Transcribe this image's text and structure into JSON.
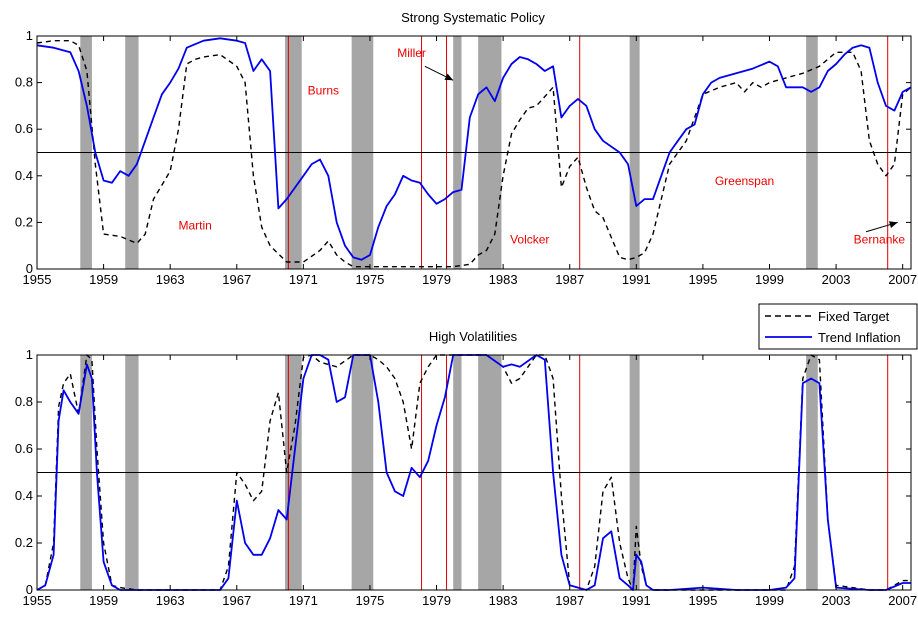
{
  "colors": {
    "trend": "#0000ee",
    "fixed": "#000000",
    "recession": "#a6a6a6",
    "chair_line": "#dd0000",
    "chair_label": "#ee0000"
  },
  "legend": {
    "entries": [
      {
        "name": "Fixed Target",
        "style": "dashed"
      },
      {
        "name": "Trend Inflation",
        "style": "solid"
      }
    ],
    "placement": "between-panels-right"
  },
  "chart_data": [
    {
      "type": "line",
      "title": "Strong Systematic Policy",
      "xlim": [
        1955,
        2007.5
      ],
      "ylim": [
        0,
        1
      ],
      "x_ticks": [
        1955,
        1959,
        1963,
        1967,
        1971,
        1975,
        1979,
        1983,
        1987,
        1991,
        1995,
        1999,
        2003,
        2007
      ],
      "y_ticks": [
        0,
        0.2,
        0.4,
        0.6,
        0.8,
        1
      ],
      "reference_line": 0.5,
      "recessions": [
        [
          1957.6,
          1958.3
        ],
        [
          1960.3,
          1961.1
        ],
        [
          1969.9,
          1970.9
        ],
        [
          1973.9,
          1975.2
        ],
        [
          1980.0,
          1980.5
        ],
        [
          1981.5,
          1982.9
        ],
        [
          1990.6,
          1991.2
        ],
        [
          2001.2,
          2001.9
        ]
      ],
      "chair_changes": [
        1970.1,
        1978.1,
        1979.6,
        1987.6,
        2006.1
      ],
      "annotations": [
        {
          "text": "Martin",
          "x": 1964.5,
          "y": 0.17
        },
        {
          "text": "Burns",
          "x": 1972.2,
          "y": 0.75
        },
        {
          "text": "Miller",
          "x": 1977.5,
          "y": 0.91
        },
        {
          "text": "Volcker",
          "x": 1984.6,
          "y": 0.11
        },
        {
          "text": "Greenspan",
          "x": 1997.5,
          "y": 0.36
        },
        {
          "text": "Bernanke",
          "x": 2005.6,
          "y": 0.11
        }
      ],
      "arrows": [
        {
          "from": [
            1978.3,
            0.87
          ],
          "to": [
            1980.0,
            0.81
          ]
        },
        {
          "from": [
            2004.8,
            0.16
          ],
          "to": [
            2006.7,
            0.2
          ]
        }
      ],
      "series": [
        {
          "name": "Fixed Target",
          "style": "dashed",
          "x": [
            1955,
            1956,
            1957,
            1957.5,
            1958,
            1958.5,
            1959,
            1960,
            1961,
            1961.5,
            1962,
            1962.5,
            1963,
            1963.5,
            1964,
            1964.5,
            1965,
            1966,
            1967,
            1967.5,
            1968,
            1968.5,
            1969,
            1970,
            1971,
            1972,
            1972.5,
            1973,
            1973.5,
            1974,
            1975,
            1976,
            1977,
            1978,
            1979,
            1980,
            1981,
            1981.5,
            1982,
            1982.5,
            1983,
            1983.5,
            1984,
            1984.5,
            1985,
            1985.5,
            1986,
            1986.5,
            1987,
            1987.5,
            1988,
            1988.5,
            1989,
            1990,
            1990.5,
            1991,
            1991.5,
            1992,
            1992.5,
            1993,
            1994,
            1995,
            1996,
            1997,
            1997.5,
            1998,
            1998.5,
            1999,
            2000,
            2001,
            2002,
            2003,
            2004,
            2004.5,
            2005,
            2005.5,
            2006,
            2006.5,
            2007,
            2007.5
          ],
          "y": [
            0.97,
            0.98,
            0.98,
            0.96,
            0.85,
            0.45,
            0.15,
            0.14,
            0.11,
            0.15,
            0.3,
            0.36,
            0.42,
            0.6,
            0.88,
            0.9,
            0.91,
            0.92,
            0.87,
            0.8,
            0.4,
            0.18,
            0.1,
            0.03,
            0.03,
            0.08,
            0.12,
            0.06,
            0.03,
            0.01,
            0.01,
            0.01,
            0.01,
            0.01,
            0.01,
            0.01,
            0.02,
            0.06,
            0.08,
            0.15,
            0.4,
            0.58,
            0.64,
            0.69,
            0.7,
            0.74,
            0.78,
            0.35,
            0.44,
            0.48,
            0.35,
            0.25,
            0.22,
            0.05,
            0.04,
            0.05,
            0.07,
            0.15,
            0.3,
            0.45,
            0.55,
            0.75,
            0.78,
            0.8,
            0.76,
            0.8,
            0.78,
            0.8,
            0.82,
            0.84,
            0.87,
            0.93,
            0.93,
            0.85,
            0.55,
            0.45,
            0.4,
            0.45,
            0.75,
            0.78
          ]
        },
        {
          "name": "Trend Inflation",
          "style": "solid",
          "x": [
            1955,
            1956,
            1957,
            1957.5,
            1958,
            1958.5,
            1959,
            1959.5,
            1960,
            1960.5,
            1961,
            1961.5,
            1962,
            1962.5,
            1963,
            1963.5,
            1964,
            1965,
            1966,
            1967,
            1967.5,
            1968,
            1968.5,
            1969,
            1969.5,
            1970,
            1971,
            1971.5,
            1972,
            1972.5,
            1973,
            1973.5,
            1974,
            1974.5,
            1975,
            1975.5,
            1976,
            1976.5,
            1977,
            1977.5,
            1978,
            1978.5,
            1979,
            1979.5,
            1980,
            1980.5,
            1981,
            1981.5,
            1982,
            1982.5,
            1983,
            1983.5,
            1984,
            1984.5,
            1985,
            1985.5,
            1986,
            1986.5,
            1987,
            1987.5,
            1988,
            1988.5,
            1989,
            1990,
            1990.5,
            1991,
            1991.5,
            1992,
            1992.5,
            1993,
            1993.5,
            1994,
            1994.5,
            1995,
            1995.5,
            1996,
            1997,
            1998,
            1999,
            1999.5,
            2000,
            2000.5,
            2001,
            2001.5,
            2002,
            2002.5,
            2003,
            2003.5,
            2004,
            2004.5,
            2005,
            2005.5,
            2006,
            2006.5,
            2007,
            2007.5
          ],
          "y": [
            0.96,
            0.95,
            0.93,
            0.85,
            0.7,
            0.5,
            0.38,
            0.37,
            0.42,
            0.4,
            0.45,
            0.55,
            0.65,
            0.75,
            0.8,
            0.86,
            0.95,
            0.98,
            0.99,
            0.98,
            0.97,
            0.85,
            0.9,
            0.85,
            0.26,
            0.3,
            0.4,
            0.45,
            0.47,
            0.4,
            0.2,
            0.1,
            0.05,
            0.04,
            0.06,
            0.18,
            0.27,
            0.32,
            0.4,
            0.38,
            0.37,
            0.32,
            0.28,
            0.3,
            0.33,
            0.34,
            0.65,
            0.75,
            0.78,
            0.72,
            0.82,
            0.88,
            0.91,
            0.9,
            0.88,
            0.85,
            0.87,
            0.65,
            0.7,
            0.73,
            0.7,
            0.6,
            0.55,
            0.5,
            0.45,
            0.27,
            0.3,
            0.3,
            0.4,
            0.5,
            0.55,
            0.6,
            0.62,
            0.75,
            0.8,
            0.82,
            0.84,
            0.86,
            0.89,
            0.87,
            0.78,
            0.78,
            0.78,
            0.76,
            0.78,
            0.85,
            0.88,
            0.92,
            0.95,
            0.96,
            0.95,
            0.8,
            0.7,
            0.68,
            0.76,
            0.78
          ]
        }
      ]
    },
    {
      "type": "line",
      "title": "High Volatilities",
      "xlim": [
        1955,
        2007.5
      ],
      "ylim": [
        0,
        1
      ],
      "x_ticks": [
        1955,
        1959,
        1963,
        1967,
        1971,
        1975,
        1979,
        1983,
        1987,
        1991,
        1995,
        1999,
        2003,
        2007
      ],
      "y_ticks": [
        0,
        0.2,
        0.4,
        0.6,
        0.8,
        1
      ],
      "reference_line": 0.5,
      "recessions": [
        [
          1957.6,
          1958.3
        ],
        [
          1960.3,
          1961.1
        ],
        [
          1969.9,
          1970.9
        ],
        [
          1973.9,
          1975.2
        ],
        [
          1980.0,
          1980.5
        ],
        [
          1981.5,
          1982.9
        ],
        [
          1990.6,
          1991.2
        ],
        [
          2001.2,
          2001.9
        ]
      ],
      "chair_changes": [
        1970.1,
        1978.1,
        1979.6,
        1987.6,
        2006.1
      ],
      "series": [
        {
          "name": "Fixed Target",
          "style": "dashed",
          "x": [
            1955,
            1955.5,
            1956,
            1956.3,
            1956.6,
            1957,
            1957.5,
            1958,
            1958.3,
            1958.6,
            1959,
            1959.5,
            1960,
            1961,
            1963,
            1965,
            1966,
            1966.5,
            1967,
            1967.5,
            1968,
            1968.5,
            1969,
            1969.5,
            1970,
            1970.5,
            1971,
            1971.5,
            1972,
            1973,
            1974,
            1974.5,
            1975,
            1975.5,
            1976,
            1976.5,
            1977,
            1977.5,
            1978,
            1978.5,
            1979,
            1980,
            1981,
            1982,
            1983,
            1983.5,
            1984,
            1985,
            1985.5,
            1986,
            1986.5,
            1987,
            1988,
            1988.5,
            1989,
            1989.5,
            1990,
            1990.5,
            1990.8,
            1991,
            1991.3,
            1991.6,
            1992,
            1993,
            1995,
            1997,
            1999,
            2000,
            2000.5,
            2001,
            2001.5,
            2002,
            2002.5,
            2003,
            2005,
            2006,
            2007,
            2007.5
          ],
          "y": [
            0,
            0.02,
            0.2,
            0.78,
            0.88,
            0.92,
            0.75,
            1,
            0.98,
            0.6,
            0.2,
            0.02,
            0.01,
            0,
            0,
            0,
            0,
            0.1,
            0.5,
            0.45,
            0.38,
            0.42,
            0.72,
            0.84,
            0.5,
            0.7,
            0.99,
            1,
            0.97,
            0.95,
            1,
            1,
            1,
            0.98,
            0.95,
            0.9,
            0.8,
            0.6,
            0.88,
            0.95,
            1,
            1,
            1,
            1,
            0.95,
            0.88,
            0.9,
            1,
            1,
            0.9,
            0.4,
            0.02,
            0,
            0.1,
            0.42,
            0.48,
            0.2,
            0.05,
            0,
            0.27,
            0.1,
            0.02,
            0,
            0,
            0,
            0,
            0,
            0,
            0.1,
            0.9,
            1,
            0.98,
            0.3,
            0.02,
            0,
            0,
            0.04,
            0.04
          ]
        },
        {
          "name": "Trend Inflation",
          "style": "solid",
          "x": [
            1955,
            1955.5,
            1956,
            1956.3,
            1956.6,
            1957,
            1957.5,
            1958,
            1958.3,
            1958.6,
            1959,
            1959.5,
            1960,
            1961,
            1963,
            1965,
            1966,
            1966.5,
            1967,
            1967.5,
            1968,
            1968.5,
            1969,
            1969.5,
            1970,
            1970.5,
            1971,
            1971.5,
            1972,
            1972.5,
            1973,
            1973.5,
            1974,
            1974.5,
            1975,
            1975.5,
            1976,
            1976.5,
            1977,
            1977.5,
            1978,
            1978.5,
            1979,
            1979.5,
            1980,
            1981,
            1982,
            1983,
            1983.5,
            1984,
            1985,
            1985.5,
            1986,
            1986.5,
            1987,
            1988,
            1988.5,
            1989,
            1989.5,
            1990,
            1990.5,
            1990.8,
            1991,
            1991.3,
            1991.6,
            1992,
            1993,
            1995,
            1997,
            1999,
            2000,
            2000.5,
            2001,
            2001.5,
            2002,
            2002.5,
            2003,
            2005,
            2006,
            2007,
            2007.5
          ],
          "y": [
            0,
            0.02,
            0.15,
            0.72,
            0.85,
            0.8,
            0.75,
            0.96,
            0.9,
            0.5,
            0.12,
            0.02,
            0,
            0,
            0,
            0,
            0,
            0.05,
            0.38,
            0.2,
            0.15,
            0.15,
            0.22,
            0.34,
            0.3,
            0.6,
            0.9,
            1,
            1,
            0.98,
            0.8,
            0.82,
            1,
            1,
            1,
            0.8,
            0.5,
            0.42,
            0.4,
            0.52,
            0.48,
            0.55,
            0.7,
            0.82,
            1,
            1,
            1,
            0.95,
            0.96,
            0.95,
            1,
            0.98,
            0.5,
            0.15,
            0.02,
            0,
            0.02,
            0.22,
            0.25,
            0.05,
            0.02,
            0,
            0.15,
            0.12,
            0.02,
            0,
            0,
            0.01,
            0,
            0,
            0.01,
            0.05,
            0.88,
            0.9,
            0.88,
            0.3,
            0.01,
            0,
            0,
            0.03,
            0.03
          ]
        }
      ]
    }
  ]
}
